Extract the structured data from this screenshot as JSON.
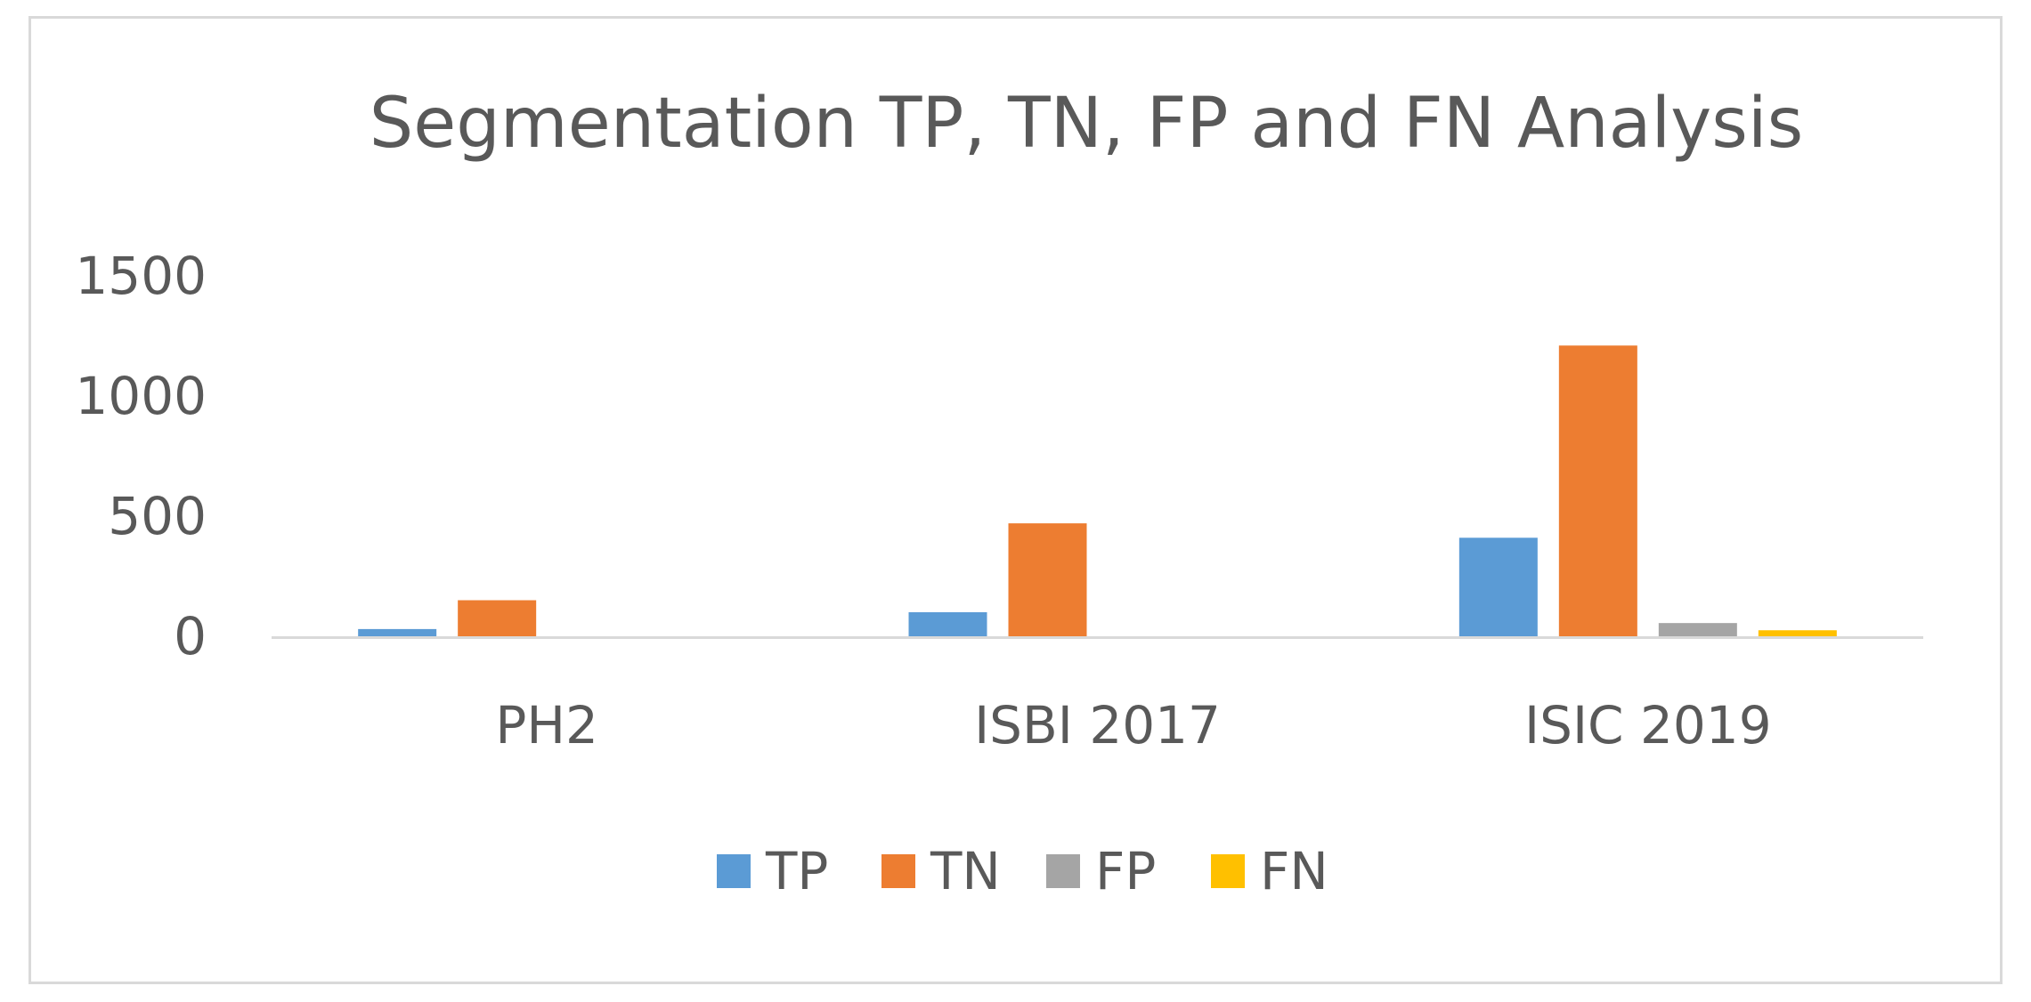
{
  "chart_data": {
    "type": "bar",
    "title": "Segmentation TP, TN, FP and FN Analysis",
    "xlabel": "",
    "ylabel": "",
    "categories": [
      "PH2",
      "ISBI 2017",
      "ISIC 2019"
    ],
    "series": [
      {
        "name": "TP",
        "color": "#5b9bd5",
        "values": [
          30,
          100,
          410
        ]
      },
      {
        "name": "TN",
        "color": "#ed7d31",
        "values": [
          150,
          470,
          1210
        ]
      },
      {
        "name": "FP",
        "color": "#a5a5a5",
        "values": [
          0,
          0,
          55
        ]
      },
      {
        "name": "FN",
        "color": "#ffc000",
        "values": [
          0,
          0,
          25
        ]
      }
    ],
    "ylim": [
      0,
      1500
    ],
    "yticks": [
      "0",
      "500",
      "1000",
      "1500"
    ],
    "grid": false,
    "legend_position": "bottom",
    "axis_color": "#d9d9d9",
    "text_color": "#595959"
  }
}
